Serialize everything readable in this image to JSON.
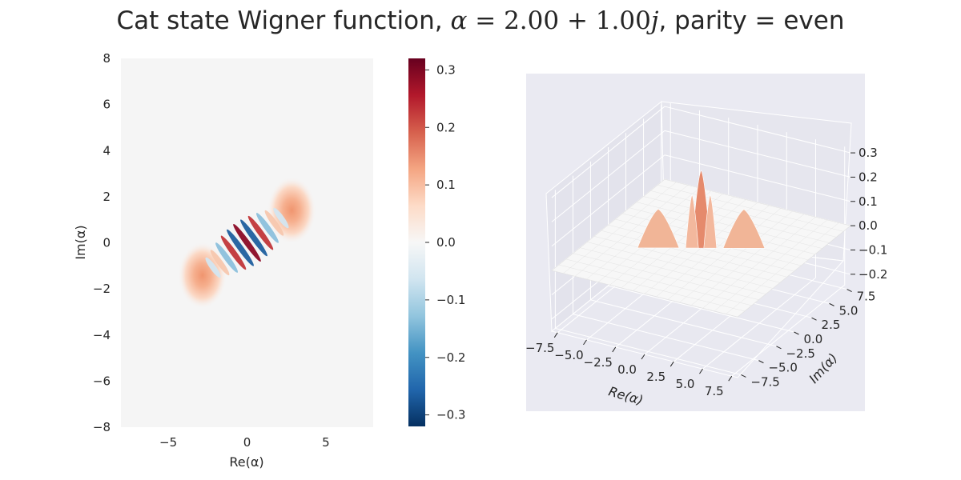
{
  "chart_data": [
    {
      "type": "heatmap",
      "title_parts": {
        "prefix": "Cat state Wigner function, ",
        "alpha_symbol": "α",
        "equals": " = ",
        "alpha_value": "2.00 + 1.00",
        "imag_unit": "j",
        "suffix": ", parity = even"
      },
      "xlabel": "Re(α)",
      "ylabel": "Im(α)",
      "xlim": [
        -8,
        8
      ],
      "ylim": [
        -8,
        8
      ],
      "xticks": [
        -5,
        0,
        5
      ],
      "yticks": [
        -8,
        -6,
        -4,
        -2,
        0,
        2,
        4,
        6,
        8
      ],
      "grid": false,
      "colormap": "RdBu_r",
      "components": {
        "lobes": [
          {
            "re": 2.83,
            "im": 1.41,
            "peak": 0.16
          },
          {
            "re": -2.83,
            "im": -1.41,
            "peak": 0.16
          }
        ],
        "interference_center": {
          "re": 0,
          "im": 0,
          "peak": 0.32
        }
      },
      "colorbar": {
        "vmin": -0.32,
        "vmax": 0.32,
        "ticks": [
          -0.3,
          -0.2,
          -0.1,
          0.0,
          0.1,
          0.2,
          0.3
        ],
        "tick_labels": [
          "−0.3",
          "−0.2",
          "−0.1",
          "0.0",
          "0.1",
          "0.2",
          "0.3"
        ]
      }
    },
    {
      "type": "surface",
      "xlabel": "Re(α)",
      "ylabel": "Im(α)",
      "xticks": [
        "−7.5",
        "−5.0",
        "−2.5",
        "0.0",
        "2.5",
        "5.0",
        "7.5"
      ],
      "yticks": [
        "−7.5",
        "−5.0",
        "−2.5",
        "0.0",
        "2.5",
        "5.0",
        "7.5"
      ],
      "zticks": [
        "−0.2",
        "−0.1",
        "0.0",
        "0.1",
        "0.2",
        "0.3"
      ],
      "zlim": [
        -0.25,
        0.32
      ],
      "grid": true,
      "pane_color": "#eaeaf2",
      "colormap": "RdBu_r"
    }
  ]
}
